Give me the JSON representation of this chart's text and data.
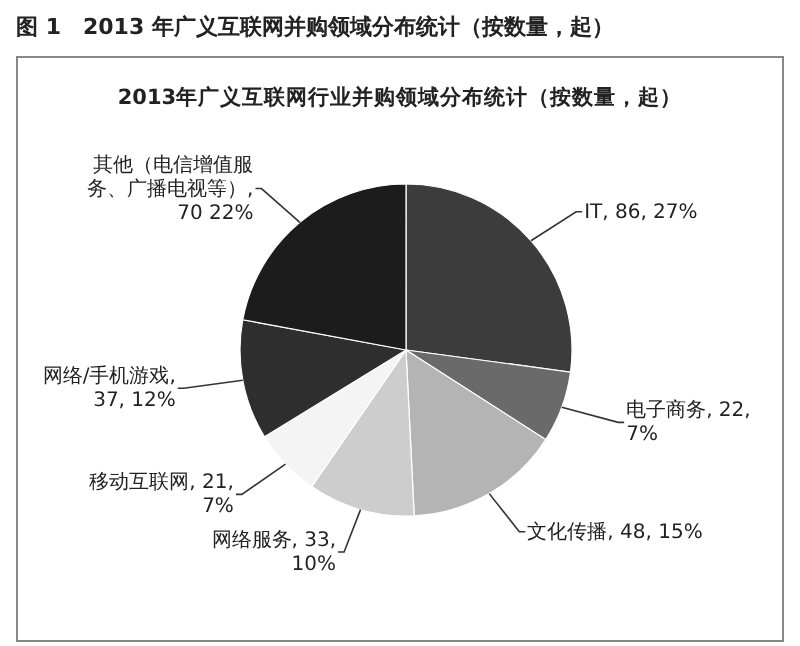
{
  "chart_data": {
    "type": "pie",
    "title": "2013年广义互联网行业并购领域分布统计（按数量，起）",
    "annotations": [
      "图 1　2013 年广义互联网并购领域分布统计（按数量，起）"
    ],
    "categories": [
      "IT",
      "电子商务",
      "文化传播",
      "网络服务",
      "移动互联网",
      "网络/手机游戏",
      "其他（电信增值服务、广播电视等）"
    ],
    "values": [
      86,
      22,
      48,
      33,
      21,
      37,
      70
    ],
    "value_labels": [
      ", 86, 27%",
      ", 22, 7%",
      ", 48, 15%",
      ", 33, 10%",
      ", 21, 7%",
      ", 37, 12%",
      ", 70 22%"
    ],
    "colors": [
      "#3c3c3c",
      "#6a6a6a",
      "#b4b4b4",
      "#cdcdcd",
      "#f4f4f4",
      "#2e2e2e",
      "#1c1c1c"
    ]
  }
}
